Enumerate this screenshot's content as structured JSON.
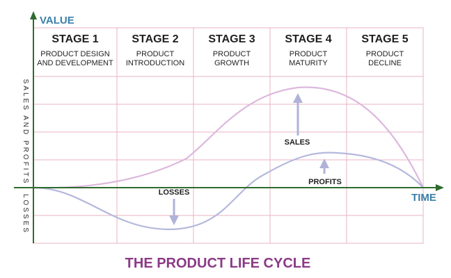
{
  "colors": {
    "grid": "#e8b3c2",
    "axis": "#2e6b2e",
    "axis_label": "#3a7fa8",
    "sales_curve": "#ddb8dd",
    "profit_curve": "#b4b8dc",
    "arrow": "#b0b2d8",
    "title": "#8b3a86"
  },
  "axes": {
    "y_label": "VALUE",
    "x_label": "TIME",
    "y_side_upper": "SALES AND PROFITS",
    "y_side_lower": "LOSSES"
  },
  "stages": [
    {
      "title": "STAGE 1",
      "line1": "PRODUCT DESIGN",
      "line2": "AND DEVELOPMENT"
    },
    {
      "title": "STAGE 2",
      "line1": "PRODUCT",
      "line2": "INTRODUCTION"
    },
    {
      "title": "STAGE 3",
      "line1": "PRODUCT",
      "line2": "GROWTH"
    },
    {
      "title": "STAGE 4",
      "line1": "PRODUCT",
      "line2": "MATURITY"
    },
    {
      "title": "STAGE 5",
      "line1": "PRODUCT",
      "line2": "DECLINE"
    }
  ],
  "annotations": {
    "sales": "SALES",
    "profits": "PROFITS",
    "losses": "LOSSES"
  },
  "title": "THE PRODUCT LIFE CYCLE"
}
